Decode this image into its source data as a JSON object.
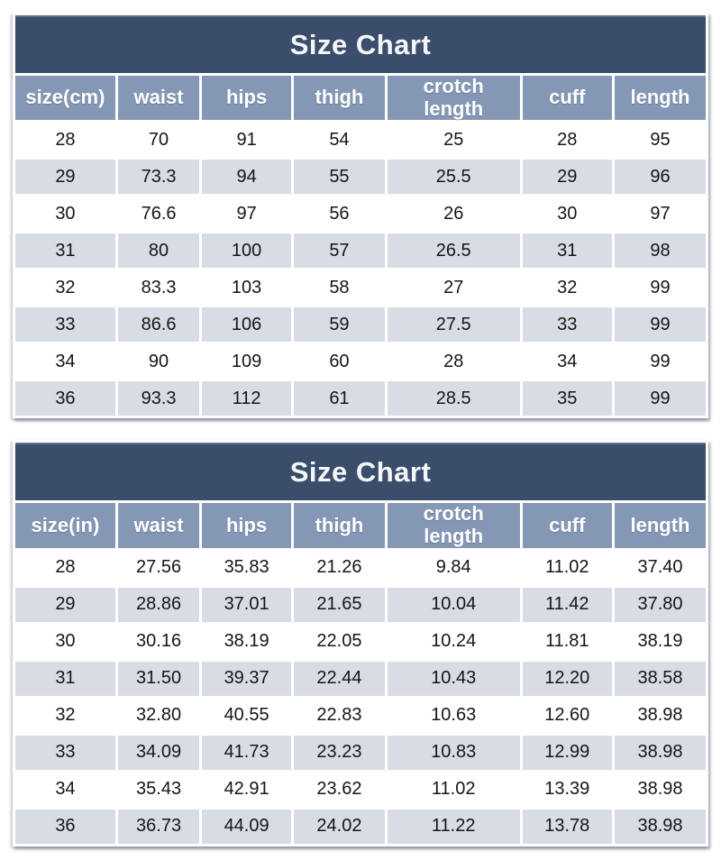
{
  "colors": {
    "title_bar_bg": "#3a4e6c",
    "title_bar_top_edge": "#5d6e88",
    "column_header_bg": "#8497b5",
    "stripe_row_bg": "#d8dce5",
    "plain_row_bg": "#ffffff",
    "title_text": "#ffffff",
    "header_text": "#ffffff",
    "cell_text": "#161616",
    "page_bg": "#ffffff"
  },
  "chart_data": [
    {
      "type": "table",
      "title": "Size Chart",
      "unit": "cm",
      "columns": [
        "size(cm)",
        "waist",
        "hips",
        "thigh",
        "crotch length",
        "cuff",
        "length"
      ],
      "rows": [
        [
          "28",
          "70",
          "91",
          "54",
          "25",
          "28",
          "95"
        ],
        [
          "29",
          "73.3",
          "94",
          "55",
          "25.5",
          "29",
          "96"
        ],
        [
          "30",
          "76.6",
          "97",
          "56",
          "26",
          "30",
          "97"
        ],
        [
          "31",
          "80",
          "100",
          "57",
          "26.5",
          "31",
          "98"
        ],
        [
          "32",
          "83.3",
          "103",
          "58",
          "27",
          "32",
          "99"
        ],
        [
          "33",
          "86.6",
          "106",
          "59",
          "27.5",
          "33",
          "99"
        ],
        [
          "34",
          "90",
          "109",
          "60",
          "28",
          "34",
          "99"
        ],
        [
          "36",
          "93.3",
          "112",
          "61",
          "28.5",
          "35",
          "99"
        ]
      ],
      "layout": {
        "striped": true,
        "first_row_plain": true,
        "legend_position": "none",
        "grid": "cell-gaps"
      }
    },
    {
      "type": "table",
      "title": "Size Chart",
      "unit": "in",
      "columns": [
        "size(in)",
        "waist",
        "hips",
        "thigh",
        "crotch length",
        "cuff",
        "length"
      ],
      "rows": [
        [
          "28",
          "27.56",
          "35.83",
          "21.26",
          "9.84",
          "11.02",
          "37.40"
        ],
        [
          "29",
          "28.86",
          "37.01",
          "21.65",
          "10.04",
          "11.42",
          "37.80"
        ],
        [
          "30",
          "30.16",
          "38.19",
          "22.05",
          "10.24",
          "11.81",
          "38.19"
        ],
        [
          "31",
          "31.50",
          "39.37",
          "22.44",
          "10.43",
          "12.20",
          "38.58"
        ],
        [
          "32",
          "32.80",
          "40.55",
          "22.83",
          "10.63",
          "12.60",
          "38.98"
        ],
        [
          "33",
          "34.09",
          "41.73",
          "23.23",
          "10.83",
          "12.99",
          "38.98"
        ],
        [
          "34",
          "35.43",
          "42.91",
          "23.62",
          "11.02",
          "13.39",
          "38.98"
        ],
        [
          "36",
          "36.73",
          "44.09",
          "24.02",
          "11.22",
          "13.78",
          "38.98"
        ]
      ],
      "layout": {
        "striped": true,
        "first_row_plain": true,
        "legend_position": "none",
        "grid": "cell-gaps"
      }
    }
  ],
  "column_widths_pct": [
    14.6,
    11.9,
    13.0,
    13.3,
    19.3,
    13.1,
    13.3
  ]
}
